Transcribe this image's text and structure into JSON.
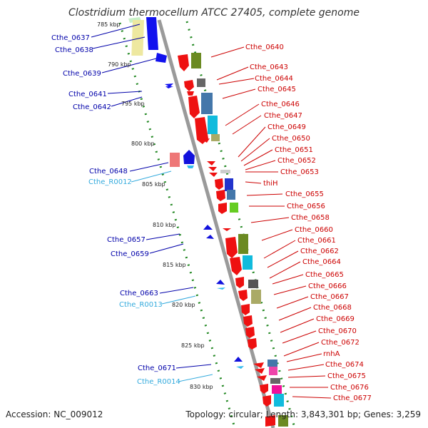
{
  "title": "Clostridium thermocellum ATCC 27405, complete genome",
  "footer": {
    "accession": "Accession: NC_009012",
    "topology": "Topology: circular; Length: 3,843,301 bp; Genes: 3,259"
  },
  "kbp_labels": [
    "785 kbp",
    "790 kbp",
    "795 kbp",
    "800 kbp",
    "805 kbp",
    "810 kbp",
    "815 kbp",
    "820 kbp",
    "825 kbp",
    "830 kbp"
  ],
  "left_labels": [
    "Cthe_0637",
    "Cthe_0638",
    "Cthe_0639",
    "Cthe_0641",
    "Cthe_0642",
    "Cthe_0648",
    "Cthe_R0012",
    "Cthe_0657",
    "Cthe_0659",
    "Cthe_0663",
    "Cthe_R0013",
    "Cthe_0671",
    "Cthe_R0014"
  ],
  "right_labels": [
    "Cthe_0640",
    "Cthe_0643",
    "Cthe_0644",
    "Cthe_0645",
    "Cthe_0646",
    "Cthe_0647",
    "Cthe_0649",
    "Cthe_0650",
    "Cthe_0651",
    "Cthe_0652",
    "Cthe_0653",
    "thiH",
    "Cthe_0655",
    "Cthe_0656",
    "Cthe_0658",
    "Cthe_0660",
    "Cthe_0661",
    "Cthe_0662",
    "Cthe_0664",
    "Cthe_0665",
    "Cthe_0666",
    "Cthe_0667",
    "Cthe_0668",
    "Cthe_0669",
    "Cthe_0670",
    "Cthe_0672",
    "rnhA",
    "Cthe_0674",
    "Cthe_0675",
    "Cthe_0676",
    "Cthe_0677"
  ],
  "colors": {
    "forward_gene": "#ee1111",
    "reverse_gene": "#1111dd",
    "rna_gene": "#33bbee",
    "label_forward": "#cc0000",
    "label_reverse": "#0000aa",
    "label_rna": "#33aadd",
    "backbone": "#888888",
    "tick": "#228822"
  }
}
